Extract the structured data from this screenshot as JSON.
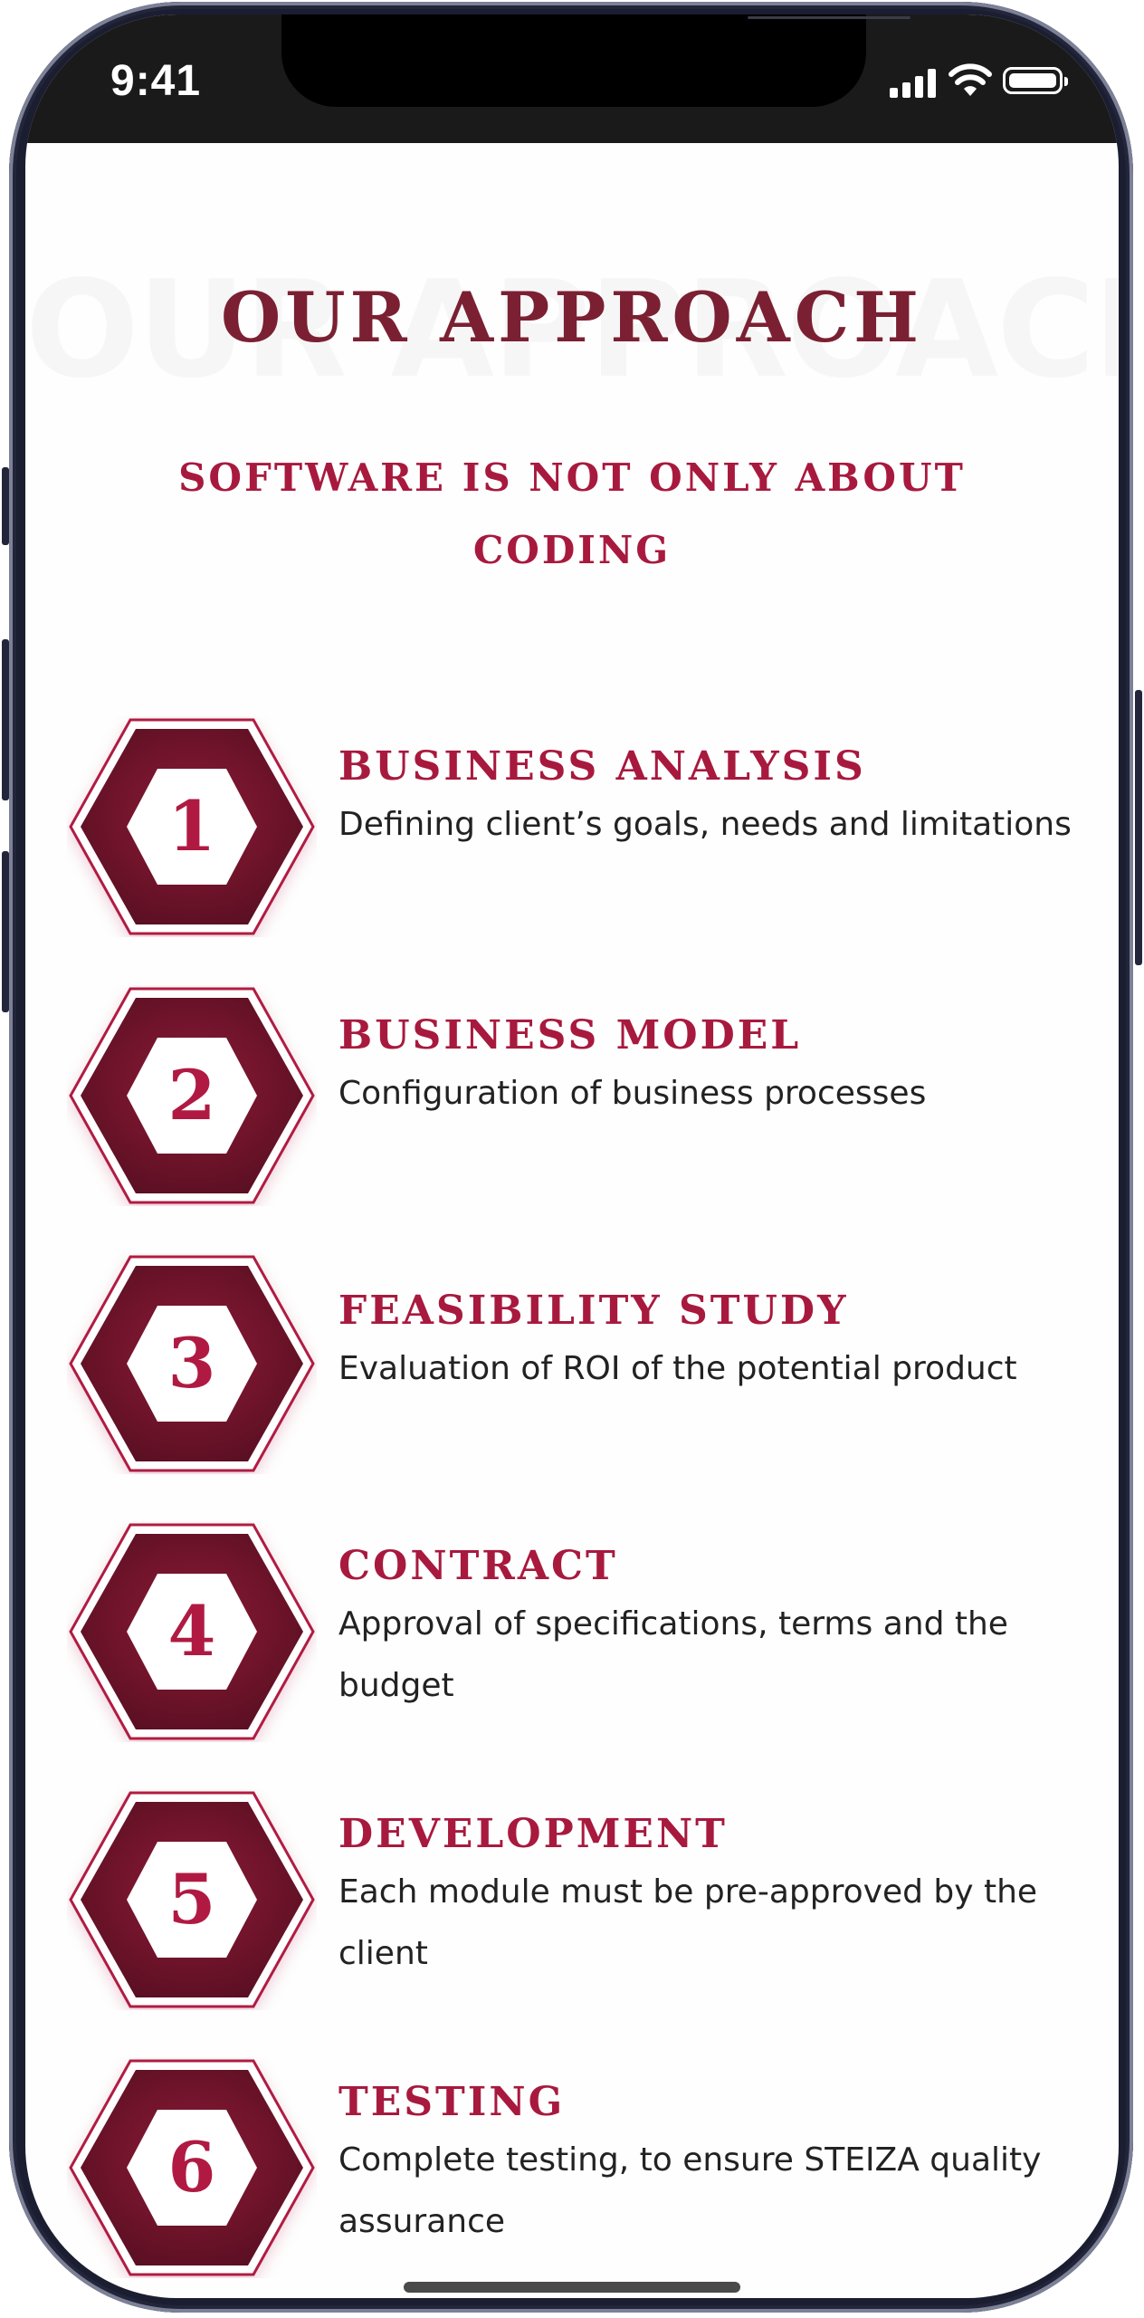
{
  "status_bar": {
    "time": "9:41"
  },
  "header": {
    "background_title": "OUR APPROACH",
    "title": "OUR APPROACH",
    "subtitle": "SOFTWARE IS NOT ONLY ABOUT CODING"
  },
  "steps": [
    {
      "number": "1",
      "title": "BUSINESS ANALYSIS",
      "description": "Defining client’s goals, needs and limitations"
    },
    {
      "number": "2",
      "title": "BUSINESS MODEL",
      "description": "Configuration of business processes"
    },
    {
      "number": "3",
      "title": "FEASIBILITY STUDY",
      "description": "Evaluation of ROI of the potential product"
    },
    {
      "number": "4",
      "title": "CONTRACT",
      "description": "Approval of specifications, terms and the budget"
    },
    {
      "number": "5",
      "title": "DEVELOPMENT",
      "description": "Each module must be pre-approved by the client"
    },
    {
      "number": "6",
      "title": "TESTING",
      "description": "Complete testing, to ensure STEIZA quality assurance"
    }
  ],
  "colors": {
    "accent": "#a8193e",
    "title": "#7b2032",
    "hex_dark": "#5a0f22",
    "hex_light": "#8e1a38"
  },
  "icons": [
    "cellular-signal-icon",
    "wifi-icon",
    "battery-icon",
    "hexagon-badge-icon"
  ]
}
